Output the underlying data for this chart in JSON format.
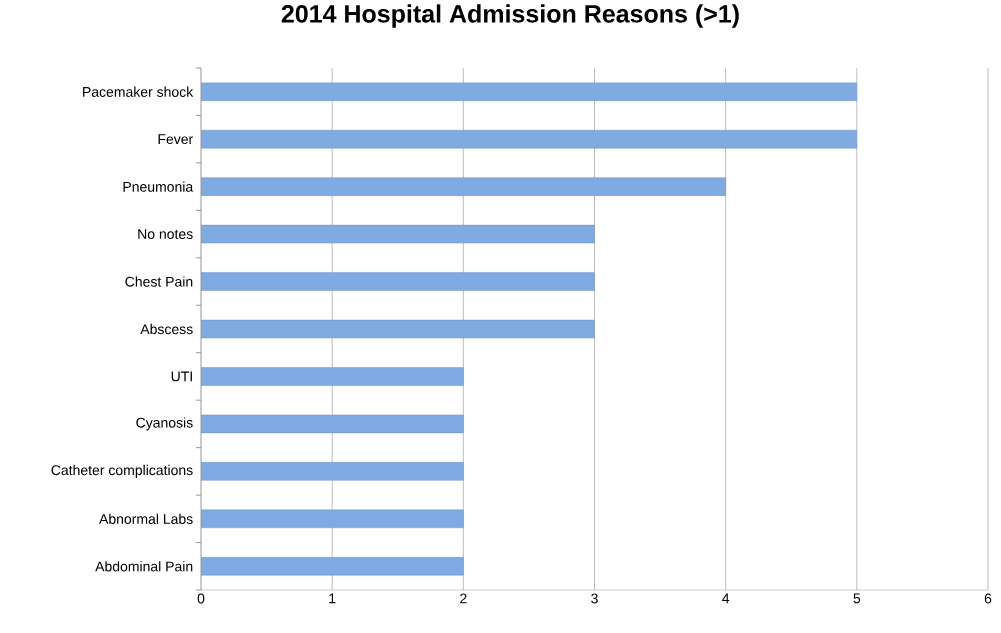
{
  "chart_data": {
    "type": "bar",
    "orientation": "horizontal",
    "title": "2014 Hospital Admission Reasons (>1)",
    "categories": [
      "Pacemaker shock",
      "Fever",
      "Pneumonia",
      "No notes",
      "Chest Pain",
      "Abscess",
      "UTI",
      "Cyanosis",
      "Catheter complications",
      "Abnormal Labs",
      "Abdominal Pain"
    ],
    "values": [
      5,
      5,
      4,
      3,
      3,
      3,
      2,
      2,
      2,
      2,
      2
    ],
    "color": "#7faae2",
    "xlim": [
      0,
      6
    ],
    "xticks": [
      0,
      1,
      2,
      3,
      4,
      5,
      6
    ],
    "grid": "x"
  }
}
